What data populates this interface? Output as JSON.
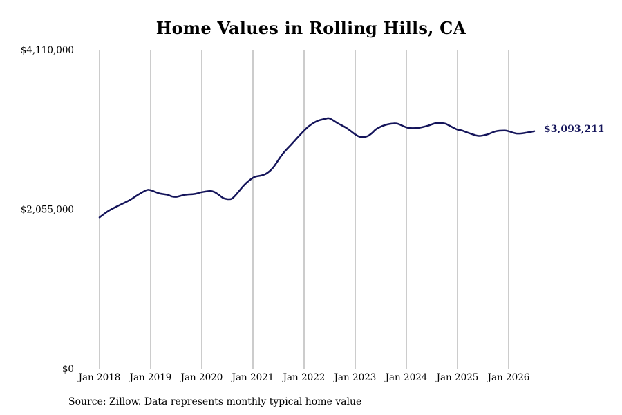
{
  "chart_data": {
    "type": "line",
    "title": "Home Values in Rolling Hills, CA",
    "source": "Source: Zillow. Data represents monthly typical home value",
    "end_label": "$3,093,211",
    "ylim": [
      0,
      4110000
    ],
    "y_ticks": [
      {
        "value": 0,
        "label": "$0"
      },
      {
        "value": 2055000,
        "label": "$2,055,000"
      },
      {
        "value": 4110000,
        "label": "$4,110,000"
      }
    ],
    "x_ticks": [
      {
        "value": "2018-01",
        "label": "Jan 2018"
      },
      {
        "value": "2019-01",
        "label": "Jan 2019"
      },
      {
        "value": "2020-01",
        "label": "Jan 2020"
      },
      {
        "value": "2021-01",
        "label": "Jan 2021"
      },
      {
        "value": "2022-01",
        "label": "Jan 2022"
      },
      {
        "value": "2023-01",
        "label": "Jan 2023"
      },
      {
        "value": "2024-01",
        "label": "Jan 2024"
      },
      {
        "value": "2025-01",
        "label": "Jan 2025"
      },
      {
        "value": "2026-01",
        "label": "Jan 2026"
      }
    ],
    "xlim": [
      "2018-01",
      "2026-07"
    ],
    "grid": "vertical",
    "line_color": "#14145a",
    "series": [
      {
        "x": [
          "2018-01",
          "2018-03",
          "2018-05",
          "2018-08",
          "2018-10",
          "2018-12",
          "2019-01",
          "2019-03",
          "2019-05",
          "2019-06",
          "2019-07",
          "2019-09",
          "2019-11",
          "2019-12",
          "2020-01",
          "2020-03",
          "2020-04",
          "2020-05",
          "2020-06",
          "2020-07",
          "2020-08",
          "2020-09",
          "2020-11",
          "2021-01",
          "2021-02",
          "2021-03",
          "2021-04",
          "2021-05",
          "2021-06",
          "2021-08",
          "2021-10",
          "2021-12",
          "2022-02",
          "2022-04",
          "2022-06",
          "2022-07",
          "2022-09",
          "2022-11",
          "2023-01",
          "2023-02",
          "2023-03",
          "2023-04",
          "2023-05",
          "2023-06",
          "2023-08",
          "2023-10",
          "2023-11",
          "2024-01",
          "2024-02",
          "2024-04",
          "2024-06",
          "2024-08",
          "2024-10",
          "2024-11",
          "2025-01",
          "2025-02",
          "2025-04",
          "2025-06",
          "2025-08",
          "2025-10",
          "2025-12",
          "2026-01",
          "2026-03",
          "2026-05",
          "2026-07"
        ],
        "y": [
          1950000,
          2030000,
          2090000,
          2170000,
          2240000,
          2300000,
          2300000,
          2260000,
          2240000,
          2220000,
          2215000,
          2240000,
          2250000,
          2260000,
          2275000,
          2290000,
          2275000,
          2240000,
          2200000,
          2185000,
          2190000,
          2240000,
          2370000,
          2460000,
          2480000,
          2490000,
          2510000,
          2550000,
          2610000,
          2770000,
          2890000,
          3010000,
          3120000,
          3190000,
          3220000,
          3225000,
          3160000,
          3100000,
          3020000,
          2990000,
          2985000,
          3000000,
          3040000,
          3090000,
          3140000,
          3160000,
          3155000,
          3110000,
          3100000,
          3105000,
          3130000,
          3165000,
          3160000,
          3135000,
          3080000,
          3070000,
          3030000,
          3000000,
          3020000,
          3060000,
          3070000,
          3060000,
          3030000,
          3040000,
          3060000
        ]
      }
    ]
  }
}
